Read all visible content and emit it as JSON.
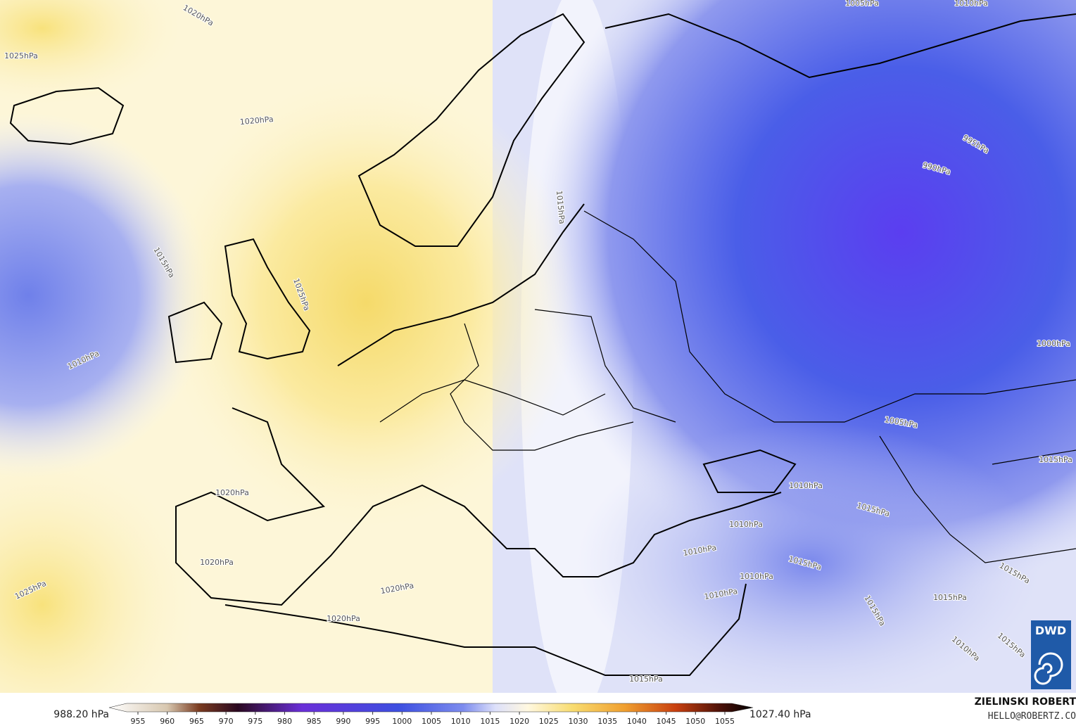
{
  "map": {
    "isobar_labels": [
      "1020hPa",
      "1025hPa",
      "1020hPa",
      "1015hPa",
      "1025hPa",
      "1010hPa",
      "1015hPa",
      "1020hPa",
      "1020hPa",
      "1025hPa",
      "1020hPa",
      "1020hPa",
      "1015hPa",
      "1005hPa",
      "1010hPa",
      "995hPa",
      "990hPa",
      "1000hPa",
      "1005hPa",
      "1015hPa",
      "1010hPa",
      "1015hPa",
      "1010hPa",
      "1010hPa",
      "1015hPa",
      "1010hPa",
      "1010hPa",
      "1015hPa",
      "1015hPa",
      "1015hPa",
      "1010hPa",
      "1015hPa"
    ],
    "logo": "DWD"
  },
  "colorbar": {
    "min_label": "988.20 hPa",
    "max_label": "1027.40 hPa",
    "ticks": [
      955,
      960,
      965,
      970,
      975,
      980,
      985,
      990,
      995,
      1000,
      1005,
      1010,
      1015,
      1020,
      1025,
      1030,
      1035,
      1040,
      1045,
      1050,
      1055
    ]
  },
  "credits": {
    "author": "ZIELINSKI ROBERT",
    "email": "HELLO@ROBERTZ.CO"
  }
}
